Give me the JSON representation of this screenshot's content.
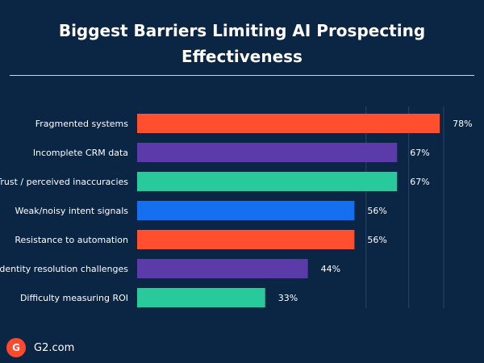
{
  "chart_data": {
    "type": "bar",
    "orientation": "horizontal",
    "title": "Biggest Barriers Limiting AI Prospecting Effectiveness",
    "categories": [
      "Fragmented systems",
      "Incomplete CRM data",
      "Trust / perceived inaccuracies",
      "Weak/noisy intent signals",
      "Resistance to automation",
      "Identity resolution challenges",
      "Difficulty measuring ROI"
    ],
    "values": [
      78,
      67,
      67,
      56,
      56,
      44,
      33
    ],
    "value_labels": [
      "78%",
      "67%",
      "67%",
      "56%",
      "56%",
      "44%",
      "33%"
    ],
    "bar_colors": [
      "#ff4f2e",
      "#5a3ba7",
      "#28c99b",
      "#1570f0",
      "#ff4f2e",
      "#5a3ba7",
      "#28c99b"
    ],
    "xlim": [
      0,
      100
    ],
    "grid": true
  },
  "colors": {
    "background": "#0b2545",
    "text": "#ffffff",
    "gridline": "#27456b"
  },
  "footer": {
    "logo_text": "G",
    "source": "G2.com"
  }
}
